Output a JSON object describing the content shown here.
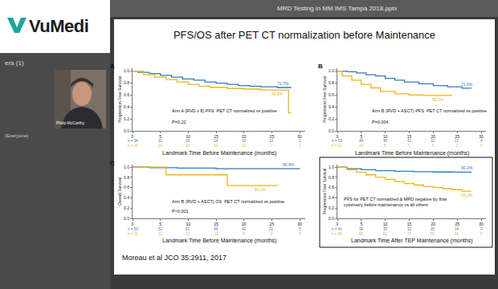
{
  "page": {
    "logo": "VuMedi",
    "file_name": "MRD Testing in MM IMS Tampa 2018.pptx",
    "sidebar_label": "era (1)",
    "presenter": "Philip McCarthy",
    "audience": "(Everyone)",
    "slide_title": "PFS/OS after PET CT normalization before Maintenance",
    "citation": "Moreau et al JCO 35:2911, 2017"
  },
  "chart_data": [
    {
      "type": "line",
      "panel": "A",
      "y_label": "Progression-Free Survival",
      "x_label": "Landmark Time Before Maintenance (months)",
      "notes": [
        "Arm A (RVD x 8) PFS  PET CT normalized vs positive",
        "P=0.22"
      ],
      "xlim": [
        0,
        31
      ],
      "xticks": [
        0,
        5,
        10,
        15,
        20,
        25,
        30
      ],
      "ylim": [
        0,
        1.05
      ],
      "yticks": [
        {
          "value": 0,
          "label": "0.0"
        },
        {
          "value": 0.2,
          "label": "0.2"
        },
        {
          "value": 0.4,
          "label": "0.4"
        },
        {
          "value": 0.6,
          "label": "0.6"
        },
        {
          "value": 0.8,
          "label": "0.8"
        },
        {
          "value": 1,
          "label": "1.0"
        }
      ],
      "grid": false,
      "line_style": "step",
      "series": [
        {
          "color": "#2f7bbf",
          "x": [
            0,
            1,
            3,
            5,
            7,
            9,
            11,
            13,
            15,
            17,
            19,
            21,
            23,
            26,
            28.5
          ],
          "values": [
            1,
            0.98,
            0.96,
            0.93,
            0.9,
            0.87,
            0.85,
            0.82,
            0.8,
            0.78,
            0.76,
            0.75,
            0.74,
            0.727,
            0.727
          ],
          "end_label": {
            "x": 27,
            "value": 0.727,
            "label": "72.7%"
          }
        },
        {
          "color": "#f0b416",
          "x": [
            0,
            2,
            4,
            6,
            8,
            10,
            12,
            14,
            17,
            20,
            23,
            26,
            28,
            28.5
          ],
          "values": [
            1,
            0.94,
            0.9,
            0.86,
            0.82,
            0.78,
            0.75,
            0.73,
            0.71,
            0.7,
            0.685,
            0.685,
            0.3,
            0.3
          ],
          "end_label": {
            "x": 26,
            "value": 0.685,
            "label": "68.5%"
          }
        }
      ],
      "at_risk": [
        [
          "n = 34",
          "31",
          "28",
          "24",
          "19",
          "10",
          "2"
        ],
        [
          "n = 25",
          "22",
          "19",
          "16",
          "12",
          "7",
          "1"
        ]
      ]
    },
    {
      "type": "line",
      "panel": "B",
      "y_label": "Progression-Free Survival",
      "x_label": "Landmark Time Before Maintenance (months)",
      "notes": [
        "Arm B (RVD + ASCT) PFS  PET CT normalized vs positive",
        "P=0.004"
      ],
      "xlim": [
        0,
        31
      ],
      "xticks": [
        0,
        5,
        10,
        15,
        20,
        25,
        30
      ],
      "ylim": [
        0,
        1.05
      ],
      "yticks": [
        {
          "value": 0,
          "label": "0.0"
        },
        {
          "value": 0.2,
          "label": "0.2"
        },
        {
          "value": 0.4,
          "label": "0.4"
        },
        {
          "value": 0.6,
          "label": "0.6"
        },
        {
          "value": 0.8,
          "label": "0.8"
        },
        {
          "value": 1,
          "label": "1.0"
        }
      ],
      "grid": false,
      "line_style": "step",
      "series": [
        {
          "color": "#2f7bbf",
          "x": [
            0,
            2,
            4,
            6,
            8,
            10,
            12,
            14,
            17,
            20,
            23,
            26,
            28
          ],
          "values": [
            1,
            0.99,
            0.97,
            0.94,
            0.92,
            0.88,
            0.85,
            0.82,
            0.79,
            0.76,
            0.74,
            0.716,
            0.716
          ],
          "end_label": {
            "x": 27,
            "value": 0.716,
            "label": "71.6%"
          }
        },
        {
          "color": "#f0b416",
          "x": [
            0,
            1,
            3,
            5,
            7,
            9,
            12,
            15,
            18,
            24
          ],
          "values": [
            1,
            0.92,
            0.85,
            0.78,
            0.72,
            0.66,
            0.62,
            0.6,
            0.593,
            0.593
          ],
          "end_label": {
            "x": 21,
            "value": 0.593,
            "label": "59.3%"
          }
        }
      ],
      "at_risk": [
        [
          "n = 53",
          "49",
          "46",
          "41",
          "32",
          "17",
          "4"
        ],
        [
          "n = 12",
          "10",
          "8",
          "7",
          "6",
          "2",
          "0"
        ]
      ]
    },
    {
      "type": "line",
      "panel": "C",
      "y_label": "Overall Survival",
      "x_label": "Landmark Time Before Maintenance (months)",
      "notes": [
        "Arm B (RVD + ASCT) OS  PET CT normalized vs positive",
        "P<0.001"
      ],
      "xlim": [
        0,
        31
      ],
      "xticks": [
        0,
        5,
        10,
        15,
        20,
        25,
        30
      ],
      "ylim": [
        0,
        1.05
      ],
      "yticks": [
        {
          "value": 0,
          "label": "0.0"
        },
        {
          "value": 0.2,
          "label": "0.2"
        },
        {
          "value": 0.4,
          "label": "0.4"
        },
        {
          "value": 0.6,
          "label": "0.6"
        },
        {
          "value": 0.8,
          "label": "0.8"
        },
        {
          "value": 1,
          "label": "1.0"
        }
      ],
      "grid": false,
      "line_style": "step",
      "series": [
        {
          "color": "#2f7bbf",
          "x": [
            0,
            3,
            8,
            15,
            30
          ],
          "values": [
            1,
            0.99,
            0.98,
            0.97,
            0.969
          ],
          "end_label": {
            "x": 28,
            "value": 0.969,
            "label": "96.9%"
          }
        },
        {
          "color": "#f0b416",
          "x": [
            0,
            6,
            17,
            26
          ],
          "values": [
            1,
            0.85,
            0.641,
            0.641
          ],
          "end_label": {
            "x": 23,
            "value": 0.641,
            "label": "64.1%"
          }
        }
      ],
      "at_risk": [
        [
          "n = 53",
          "52",
          "51",
          "49",
          "40",
          "21",
          "5"
        ],
        [
          "n = 12",
          "12",
          "11",
          "11",
          "9",
          "4",
          "0"
        ]
      ]
    },
    {
      "type": "line",
      "y_label": "Progression-Free Survival",
      "x_label": "Landmark Time After TEP Maintenance (months)",
      "notes": [
        "PFS for PET CT normalized & MRD negative by flow\ncytometry before maintenance vs all others"
      ],
      "xlim": [
        0,
        31
      ],
      "xticks": [
        0,
        5,
        10,
        15,
        20,
        25,
        30
      ],
      "ylim": [
        0,
        1.05
      ],
      "yticks": [
        {
          "value": 0,
          "label": "0.0"
        },
        {
          "value": 0.2,
          "label": "0.2"
        },
        {
          "value": 0.4,
          "label": "0.4"
        },
        {
          "value": 0.6,
          "label": "0.6"
        },
        {
          "value": 0.8,
          "label": "0.8"
        },
        {
          "value": 1,
          "label": "1.0"
        }
      ],
      "grid": false,
      "line_style": "step",
      "series": [
        {
          "color": "#2f7bbf",
          "x": [
            0,
            2,
            5,
            8,
            12,
            16,
            20,
            24,
            28
          ],
          "values": [
            1,
            0.97,
            0.95,
            0.93,
            0.92,
            0.91,
            0.905,
            0.902,
            0.902
          ],
          "end_label": {
            "x": 27,
            "value": 0.902,
            "label": "90.2%"
          }
        },
        {
          "color": "#f0b416",
          "x": [
            0,
            2,
            4,
            6,
            8,
            10,
            12,
            14,
            16,
            18,
            20,
            22,
            24,
            26,
            28
          ],
          "values": [
            1,
            0.95,
            0.9,
            0.85,
            0.8,
            0.76,
            0.72,
            0.68,
            0.65,
            0.62,
            0.6,
            0.58,
            0.56,
            0.532,
            0.532
          ],
          "end_label": {
            "x": 27,
            "value": 0.532,
            "label": "53.2%"
          }
        }
      ],
      "at_risk": [
        [
          "n = 41",
          "39",
          "36",
          "32",
          "26",
          "14",
          "3"
        ],
        [
          "n = 96",
          "90",
          "82",
          "70",
          "55",
          "28",
          "6"
        ]
      ]
    }
  ]
}
